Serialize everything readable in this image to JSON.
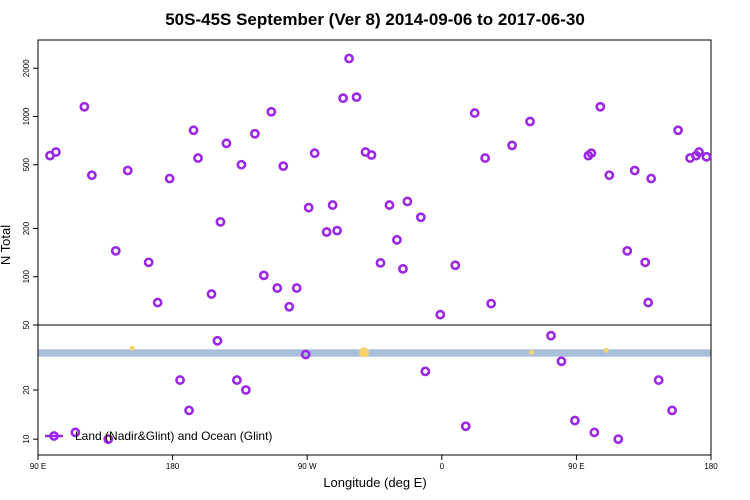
{
  "chart_data": {
    "type": "scatter",
    "title": "50S-45S September (Ver 8)   2014-09-06 to 2017-06-30",
    "xlabel": "Longitude (deg E)",
    "ylabel": "N Total",
    "x_ticks": [
      {
        "value": 90,
        "label": "90 E"
      },
      {
        "value": 180,
        "label": "180"
      },
      {
        "value": 270,
        "label": "90 W"
      },
      {
        "value": 360,
        "label": "0"
      },
      {
        "value": 450,
        "label": "90 E"
      },
      {
        "value": 540,
        "label": "180"
      }
    ],
    "xlim": [
      90,
      540
    ],
    "upper_panel": {
      "scale": "log",
      "ylim": [
        50,
        3000
      ],
      "y_ticks": [
        {
          "value": 50,
          "label": "50"
        },
        {
          "value": 100,
          "label": "100"
        },
        {
          "value": 200,
          "label": "200"
        },
        {
          "value": 500,
          "label": "500"
        },
        {
          "value": 1000,
          "label": "1000"
        },
        {
          "value": 2000,
          "label": "2000"
        }
      ]
    },
    "lower_panel": {
      "scale": "log",
      "ylim": [
        8,
        50
      ],
      "y_ticks": [
        {
          "value": 10,
          "label": "10"
        },
        {
          "value": 20,
          "label": "20"
        }
      ],
      "band": {
        "ymin": 32,
        "ymax": 35.5,
        "color": "#a9bedb"
      }
    },
    "legend": {
      "position": "bottom-left",
      "label": "Land (Nadir&Glint) and Ocean (Glint)"
    },
    "colors": {
      "marker": "#9b27e8",
      "band": "#a9bedb",
      "yellow": "#f7d36b",
      "axis": "#000000"
    },
    "series": [
      {
        "name": "Land (Nadir&Glint) and Ocean (Glint)",
        "x": [
          98,
          102,
          115,
          121,
          126,
          137,
          142,
          150,
          164,
          170,
          178,
          185,
          191,
          194,
          197,
          206,
          210,
          212,
          216,
          223,
          226,
          229,
          235,
          241,
          246,
          250,
          254,
          258,
          263,
          269,
          271,
          275,
          283,
          287,
          290,
          294,
          298,
          303,
          309,
          313,
          319,
          325,
          330,
          334,
          337,
          346,
          349,
          359,
          369,
          376,
          382,
          389,
          393,
          407,
          419,
          433,
          440,
          449,
          458,
          460,
          462,
          466,
          472,
          478,
          484,
          489,
          496,
          498,
          500,
          505,
          514,
          518,
          526,
          530,
          532,
          537
        ],
        "y": [
          570,
          600,
          11,
          1150,
          430,
          10,
          145,
          460,
          123,
          69,
          410,
          23,
          15,
          820,
          550,
          78,
          40,
          220,
          680,
          23,
          500,
          20,
          780,
          102,
          1070,
          85,
          490,
          65,
          85,
          33,
          270,
          590,
          190,
          280,
          194,
          1300,
          2300,
          1320,
          600,
          575,
          122,
          280,
          170,
          112,
          295,
          235,
          26,
          58,
          118,
          12,
          1050,
          550,
          68,
          660,
          930,
          43,
          30,
          13,
          570,
          590,
          11,
          1150,
          430,
          10,
          145,
          460,
          123,
          69,
          410,
          23,
          15,
          820,
          550,
          570,
          600,
          560
        ]
      }
    ],
    "highlight_points": {
      "color": "#f7d36b",
      "x": [
        153,
        420,
        308,
        470
      ],
      "y": [
        36,
        34,
        34,
        35
      ]
    }
  }
}
